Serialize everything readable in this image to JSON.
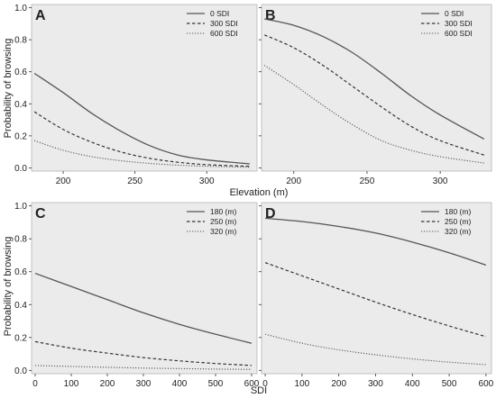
{
  "figure": {
    "top_xlabel": "Elevation (m)",
    "bottom_xlabel": "SDI",
    "ylabel": "Probability of browsing"
  },
  "chart_data": [
    {
      "panel": "A",
      "type": "line",
      "xlim": [
        178,
        335
      ],
      "ylim": [
        -0.02,
        1.02
      ],
      "xticks": [
        200,
        250,
        300
      ],
      "yticks": [
        0.0,
        0.2,
        0.4,
        0.6,
        0.8,
        1.0
      ],
      "legend_position": "top-right",
      "series": [
        {
          "name": "0   SDI",
          "style": "solid",
          "x": [
            180,
            200,
            220,
            240,
            260,
            280,
            300,
            330
          ],
          "y": [
            0.59,
            0.47,
            0.34,
            0.23,
            0.14,
            0.08,
            0.05,
            0.025
          ]
        },
        {
          "name": "300 SDI",
          "style": "dashed",
          "x": [
            180,
            200,
            220,
            240,
            260,
            280,
            300,
            330
          ],
          "y": [
            0.35,
            0.24,
            0.16,
            0.1,
            0.06,
            0.035,
            0.02,
            0.01
          ]
        },
        {
          "name": "600 SDI",
          "style": "dotted",
          "x": [
            180,
            200,
            220,
            240,
            260,
            280,
            300,
            330
          ],
          "y": [
            0.17,
            0.11,
            0.07,
            0.045,
            0.028,
            0.017,
            0.01,
            0.004
          ]
        }
      ]
    },
    {
      "panel": "B",
      "type": "line",
      "xlim": [
        178,
        335
      ],
      "ylim": [
        -0.02,
        1.02
      ],
      "xticks": [
        200,
        250,
        300
      ],
      "yticks": [
        0.0,
        0.2,
        0.4,
        0.6,
        0.8,
        1.0
      ],
      "legend_position": "top-right",
      "series": [
        {
          "name": "0   SDI",
          "style": "solid",
          "x": [
            180,
            200,
            220,
            240,
            260,
            280,
            300,
            330
          ],
          "y": [
            0.93,
            0.89,
            0.82,
            0.72,
            0.59,
            0.45,
            0.33,
            0.18
          ]
        },
        {
          "name": "300 SDI",
          "style": "dashed",
          "x": [
            180,
            200,
            220,
            240,
            260,
            280,
            300,
            330
          ],
          "y": [
            0.83,
            0.75,
            0.64,
            0.51,
            0.38,
            0.26,
            0.17,
            0.08
          ]
        },
        {
          "name": "600 SDI",
          "style": "dotted",
          "x": [
            180,
            200,
            220,
            240,
            260,
            280,
            300,
            330
          ],
          "y": [
            0.64,
            0.52,
            0.39,
            0.27,
            0.17,
            0.11,
            0.07,
            0.03
          ]
        }
      ]
    },
    {
      "panel": "C",
      "type": "line",
      "xlim": [
        -10,
        615
      ],
      "ylim": [
        -0.02,
        1.02
      ],
      "xticks": [
        0,
        100,
        200,
        300,
        400,
        500,
        600
      ],
      "yticks": [
        0.0,
        0.2,
        0.4,
        0.6,
        0.8,
        1.0
      ],
      "legend_position": "top-right",
      "series": [
        {
          "name": "180 (m)",
          "style": "solid",
          "x": [
            0,
            100,
            200,
            300,
            400,
            500,
            600
          ],
          "y": [
            0.59,
            0.51,
            0.43,
            0.35,
            0.28,
            0.22,
            0.165
          ]
        },
        {
          "name": "250 (m)",
          "style": "dashed",
          "x": [
            0,
            100,
            200,
            300,
            400,
            500,
            600
          ],
          "y": [
            0.175,
            0.135,
            0.105,
            0.078,
            0.058,
            0.042,
            0.03
          ]
        },
        {
          "name": "320 (m)",
          "style": "dotted",
          "x": [
            0,
            100,
            200,
            300,
            400,
            500,
            600
          ],
          "y": [
            0.03,
            0.024,
            0.019,
            0.014,
            0.011,
            0.008,
            0.006
          ]
        }
      ]
    },
    {
      "panel": "D",
      "type": "line",
      "xlim": [
        -10,
        615
      ],
      "ylim": [
        -0.02,
        1.02
      ],
      "xticks": [
        0,
        100,
        200,
        300,
        400,
        500,
        600
      ],
      "yticks": [
        0.0,
        0.2,
        0.4,
        0.6,
        0.8,
        1.0
      ],
      "legend_position": "top-right",
      "series": [
        {
          "name": "180 (m)",
          "style": "solid",
          "x": [
            0,
            100,
            200,
            300,
            400,
            500,
            600
          ],
          "y": [
            0.925,
            0.905,
            0.875,
            0.835,
            0.78,
            0.715,
            0.64
          ]
        },
        {
          "name": "250 (m)",
          "style": "dashed",
          "x": [
            0,
            100,
            200,
            300,
            400,
            500,
            600
          ],
          "y": [
            0.655,
            0.575,
            0.495,
            0.415,
            0.34,
            0.27,
            0.205
          ]
        },
        {
          "name": "320 (m)",
          "style": "dotted",
          "x": [
            0,
            100,
            200,
            300,
            400,
            500,
            600
          ],
          "y": [
            0.22,
            0.165,
            0.125,
            0.095,
            0.07,
            0.05,
            0.035
          ]
        }
      ]
    }
  ]
}
